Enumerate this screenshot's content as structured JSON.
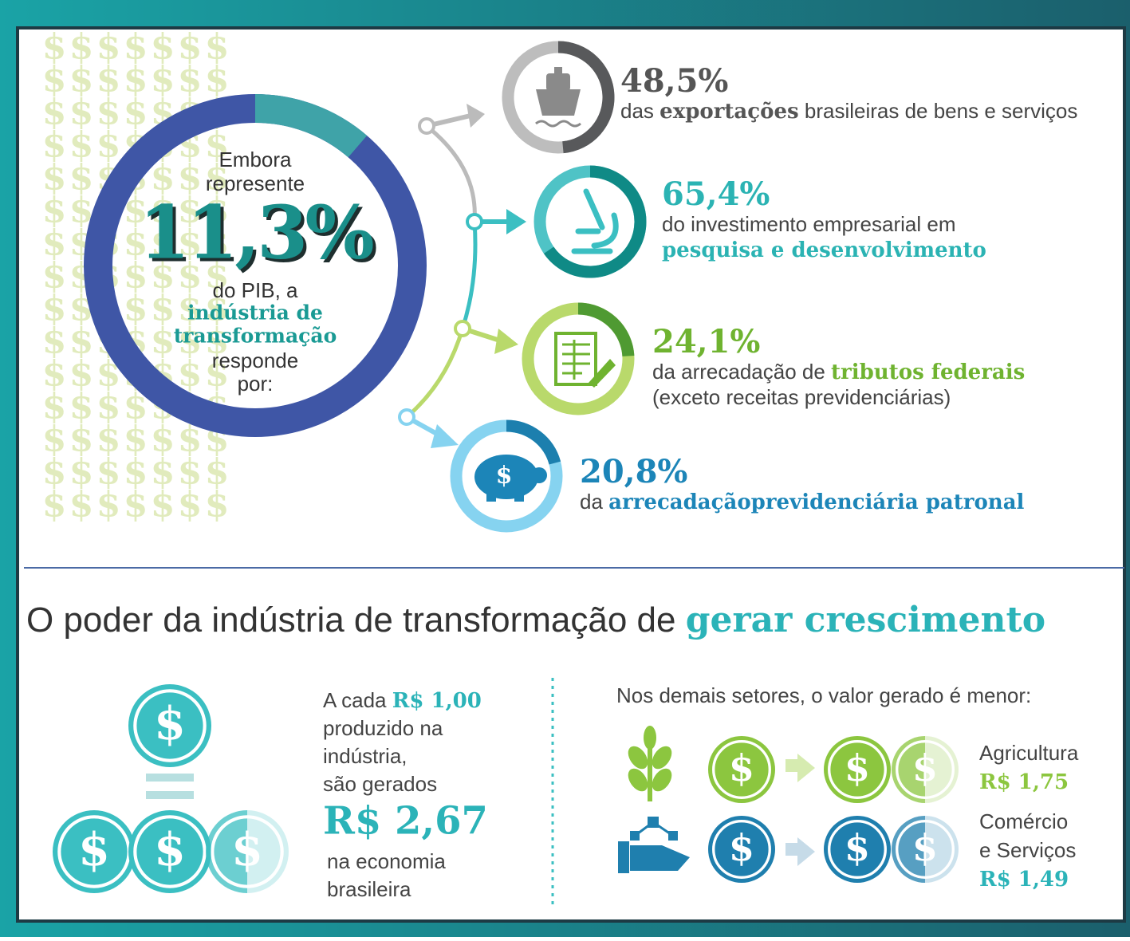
{
  "icons": {
    "dollar": "$"
  },
  "hero": {
    "top_lines": [
      "Embora",
      "represente"
    ],
    "value": 11.3,
    "label": "11,3%",
    "middle_lines": [
      "do PIB, a"
    ],
    "bold_lines": [
      "indústria de",
      "transformação"
    ],
    "end_lines": [
      "responde",
      "por:"
    ],
    "color": "#3f56a6",
    "highlight_color": "#3fa3a8"
  },
  "stats": [
    {
      "value": 48.5,
      "label": "48,5%",
      "color": "#58595b",
      "track_color": "#bdbdbd",
      "label_color": "#555555",
      "lines": [
        [
          {
            "text": "das "
          },
          {
            "text": "exportações",
            "bold": true
          },
          {
            "text": " brasileiras de bens e serviços"
          }
        ]
      ]
    },
    {
      "value": 65.4,
      "label": "65,4%",
      "color": "#0f8a86",
      "track_color": "#4fc3c6",
      "label_color": "#2bb3b3",
      "lines": [
        [
          {
            "text": "do investimento empresarial em"
          }
        ],
        [
          {
            "text": "pesquisa e desenvolvimento",
            "bold": true
          }
        ]
      ]
    },
    {
      "value": 24.1,
      "label": "24,1%",
      "color": "#4f9a32",
      "track_color": "#b9d96b",
      "label_color": "#6fb330",
      "lines": [
        [
          {
            "text": "da arrecadação de "
          },
          {
            "text": "tributos federais",
            "bold": true
          }
        ],
        [
          {
            "text": "(exceto receitas previdenciárias)"
          }
        ]
      ]
    },
    {
      "value": 20.8,
      "label": "20,8%",
      "color": "#1c7fae",
      "track_color": "#86d3f0",
      "label_color": "#1c85b8",
      "lines": [
        [
          {
            "text": "da "
          },
          {
            "text": "arrecadaçãoprevidenciária patronal",
            "bold": true
          }
        ]
      ]
    }
  ],
  "section": {
    "title": [
      {
        "text": "O poder da indústria de transformação de "
      },
      {
        "text": "gerar crescimento",
        "bold": true
      }
    ]
  },
  "left": {
    "lines": [
      [
        {
          "text": "A cada "
        },
        {
          "text": "R$ 1,00",
          "bold": true
        }
      ],
      [
        {
          "text": "produzido na"
        }
      ],
      [
        {
          "text": "indústria,"
        }
      ],
      [
        {
          "text": "são gerados"
        }
      ]
    ],
    "result": "R$ 2,67",
    "after_lines": [
      "na economia",
      "brasileira"
    ]
  },
  "right": {
    "header": "Nos demais setores, o valor gerado é menor:",
    "sectors": [
      {
        "name_lines": [
          "Agricultura"
        ],
        "value": "R$ 1,75",
        "color": "#8cc63f"
      },
      {
        "name_lines": [
          "Comércio",
          "e Serviços"
        ],
        "value": "R$ 1,49",
        "color": "#1f7fae"
      }
    ]
  }
}
